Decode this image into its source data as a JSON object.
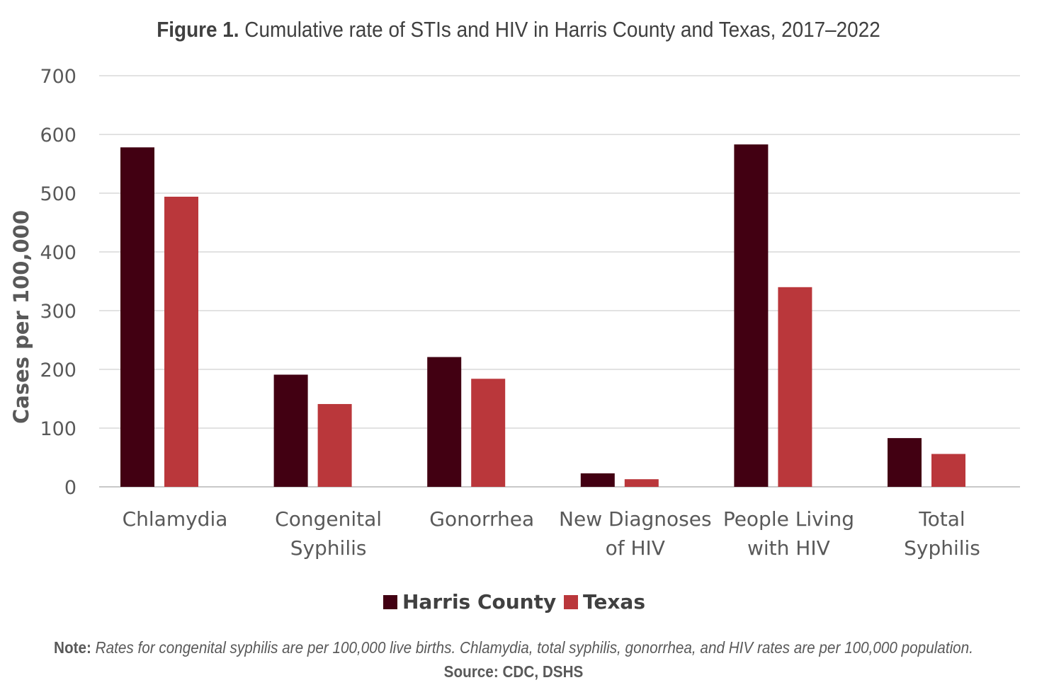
{
  "title": {
    "prefix": "Figure 1.",
    "text": "Cumulative rate of STIs and HIV in Harris County and Texas, 2017–2022"
  },
  "note": {
    "label": "Note:",
    "text": "Rates for congenital syphilis are per 100,000 live births. Chlamydia, total syphilis, gonorrhea, and HIV rates are per 100,000 population."
  },
  "source": "Source: CDC, DSHS",
  "chart_data": {
    "type": "bar",
    "ylabel": "Cases per 100,000",
    "xlabel": "",
    "ylim": [
      0,
      700
    ],
    "yticks": [
      0,
      100,
      200,
      300,
      400,
      500,
      600,
      700
    ],
    "grid": true,
    "legend_position": "bottom",
    "categories": [
      [
        "Chlamydia"
      ],
      [
        "Congenital",
        "Syphilis"
      ],
      [
        "Gonorrhea"
      ],
      [
        "New Diagnoses",
        "of HIV"
      ],
      [
        "People Living",
        "with HIV"
      ],
      [
        "Total",
        "Syphilis"
      ]
    ],
    "series": [
      {
        "name": "Harris County",
        "color": "#420012",
        "values": [
          578,
          191,
          221,
          23,
          583,
          83
        ]
      },
      {
        "name": "Texas",
        "color": "#BA373B",
        "values": [
          494,
          141,
          184,
          13,
          340,
          56
        ]
      }
    ]
  }
}
